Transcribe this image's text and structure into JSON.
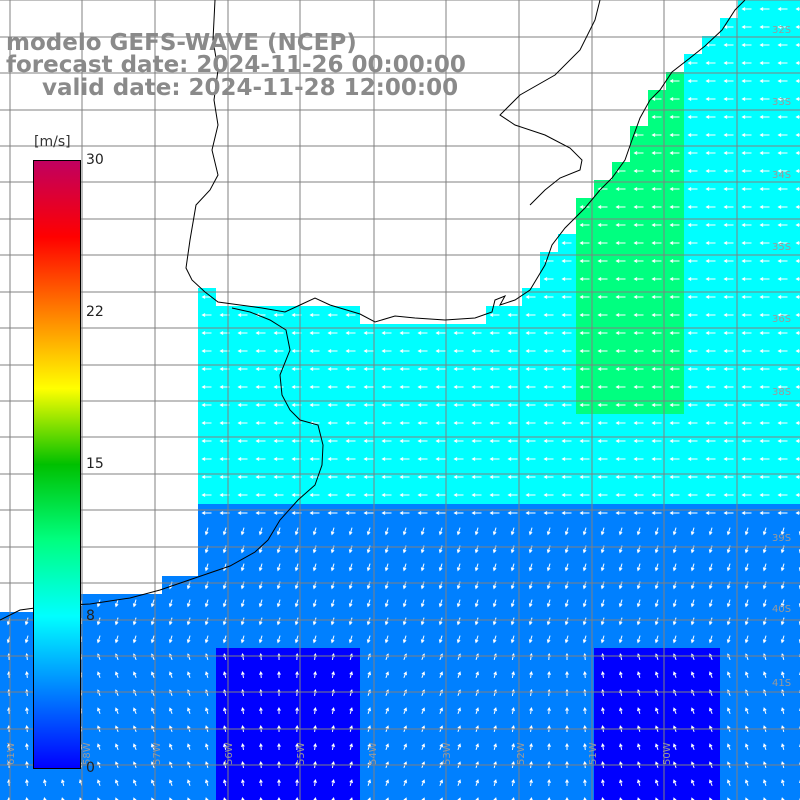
{
  "title": {
    "line1": "modelo GEFS-WAVE (NCEP)",
    "line2": "forecast date: 2024-11-26 00:00:00",
    "line3": "valid date: 2024-11-28 12:00:00"
  },
  "colorbar": {
    "unit": "[m/s]",
    "ticks": [
      "30",
      "22",
      "15",
      "8",
      "0"
    ],
    "range": [
      0,
      30
    ],
    "stops": [
      "#0000ff",
      "#0080ff",
      "#00ffff",
      "#00ff80",
      "#00c000",
      "#ffff00",
      "#ff8000",
      "#ff0000",
      "#c00060"
    ]
  },
  "lat_labels": [
    "32S",
    "33S",
    "34S",
    "35S",
    "36S",
    "38S",
    "39S",
    "40S",
    "41S"
  ],
  "lon_labels": [
    "61W",
    "58W",
    "57W",
    "56W",
    "55W",
    "54W",
    "53W",
    "52W",
    "51W",
    "50W"
  ],
  "colors": {
    "land": "#ffffff",
    "coast": "#000000",
    "grid": "#808080",
    "vector": "#ffffff"
  }
}
